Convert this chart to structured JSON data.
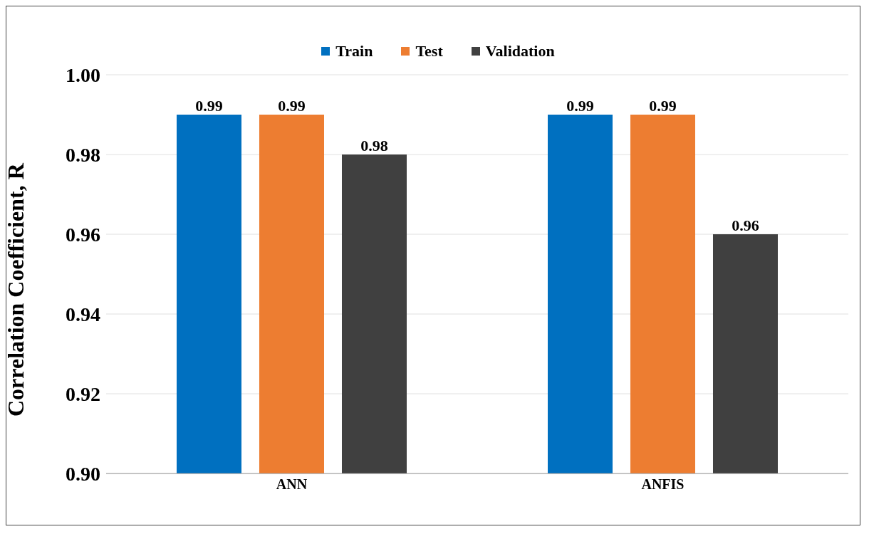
{
  "chart_data": {
    "type": "bar",
    "ylabel": "Correlation Coefficient, R",
    "categories": [
      "ANN",
      "ANFIS"
    ],
    "series": [
      {
        "name": "Train",
        "color": "#0070c0",
        "values": [
          0.99,
          0.99
        ]
      },
      {
        "name": "Test",
        "color": "#ed7d31",
        "values": [
          0.99,
          0.99
        ]
      },
      {
        "name": "Validation",
        "color": "#404040",
        "values": [
          0.98,
          0.96
        ]
      }
    ],
    "ylim": [
      0.9,
      1.0
    ],
    "yticks": [
      {
        "value": 0.9,
        "label": "0.90"
      },
      {
        "value": 0.92,
        "label": "0.92"
      },
      {
        "value": 0.94,
        "label": "0.94"
      },
      {
        "value": 0.96,
        "label": "0.96"
      },
      {
        "value": 0.98,
        "label": "0.98"
      },
      {
        "value": 1.0,
        "label": "1.00"
      }
    ],
    "grid": "y",
    "legend": "top",
    "data_labels": true
  }
}
